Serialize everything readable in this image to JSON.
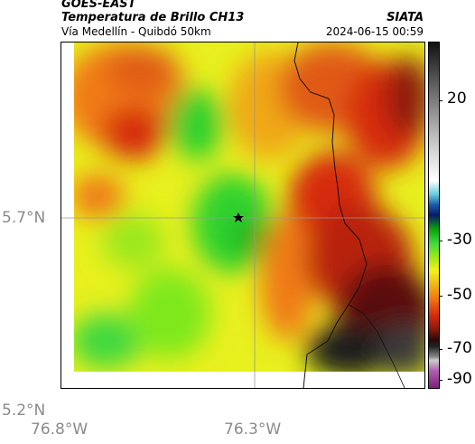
{
  "header": {
    "satellite": "GOES-EAST",
    "product": "Temperatura de Brillo CH13",
    "organization": "SIATA",
    "route": "Vía Medellín - Quibdó 50km",
    "timestamp": "2024-06-15 00:59"
  },
  "axes": {
    "lat_ticks": [
      "5.7°N",
      "5.2°N"
    ],
    "lon_ticks": [
      "76.8°W",
      "76.3°W"
    ]
  },
  "colorbar": {
    "ticks": [
      "20",
      "-30",
      "-50",
      "-70",
      "-90"
    ]
  },
  "colors": {
    "green": "#2fd12f",
    "yellow": "#f2f21a",
    "orange": "#f07a14",
    "red": "#d62a10",
    "dark": "#1a1a1a"
  },
  "marker": {
    "icon": "star-icon"
  }
}
